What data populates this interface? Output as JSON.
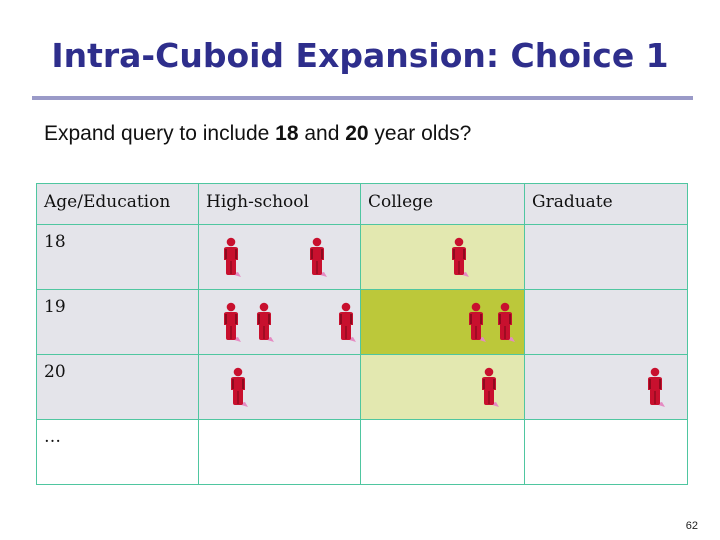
{
  "slide": {
    "title": "Intra-Cuboid Expansion: Choice 1",
    "subtitle_parts": [
      "Expand query to include ",
      "18",
      " and ",
      "20",
      " year olds?"
    ],
    "page_number": "62"
  },
  "table": {
    "headers": [
      "Age/Education",
      "High-school",
      "College",
      "Graduate"
    ],
    "rows": [
      {
        "label": "18",
        "counts": [
          2,
          1,
          0
        ]
      },
      {
        "label": "19",
        "counts": [
          3,
          2,
          0
        ]
      },
      {
        "label": "20",
        "counts": [
          1,
          1,
          1
        ]
      },
      {
        "label": "…",
        "counts": [
          0,
          0,
          0
        ]
      }
    ]
  },
  "colors": {
    "title": "#2e2e8c",
    "cell_default": "#e4e4ea",
    "cell_highlight_light": "#e3e8b0",
    "cell_highlight_dark": "#bcc83a",
    "grid_line": "#4fc6a0",
    "person_icon": "#c8102e"
  },
  "icons": {
    "person": "person-icon"
  }
}
